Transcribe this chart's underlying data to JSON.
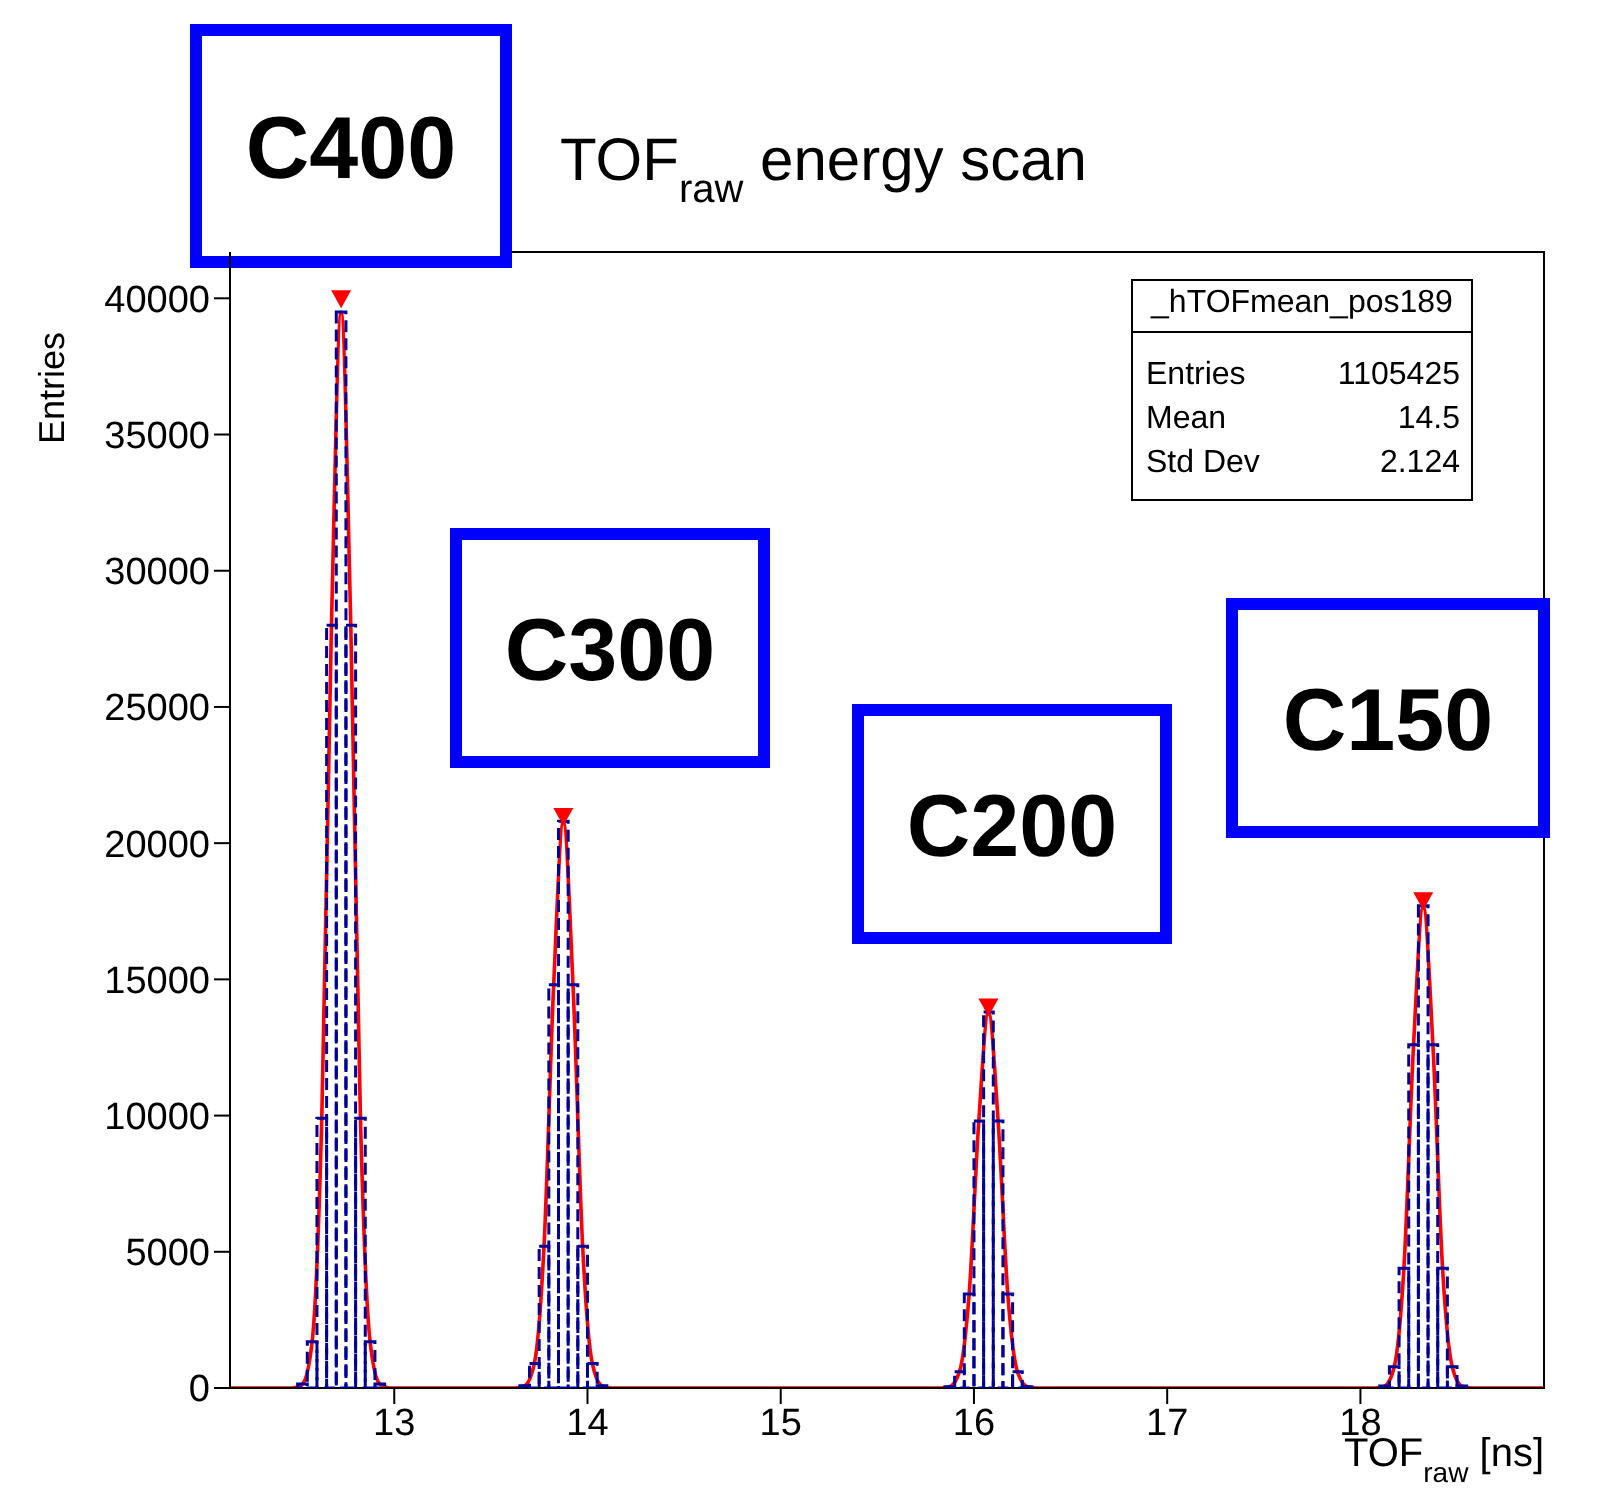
{
  "chart_data": {
    "type": "histogram",
    "title": "TOF$_{raw}$ energy scan",
    "xlabel": "TOF$_{raw}$ [ns]",
    "ylabel": "Entries",
    "xlim": [
      12.15,
      18.95
    ],
    "xticks": [
      13,
      14,
      15,
      16,
      17,
      18
    ],
    "ylim": [
      0,
      41700
    ],
    "yticks": [
      0,
      5000,
      10000,
      15000,
      20000,
      25000,
      30000,
      35000,
      40000
    ],
    "grid": false,
    "annotations": [
      "C400",
      "C300",
      "C200",
      "C150",
      "_hTOFmean_pos189",
      "Entries 1105425",
      "Mean 14.5",
      "Std Dev 2.124"
    ],
    "series": [
      {
        "color": "#000099",
        "bins": [
          12.15,
          12.2,
          12.25,
          12.3,
          12.35,
          12.4,
          12.45,
          12.5,
          12.55,
          12.6,
          12.65,
          12.7,
          12.75,
          12.8,
          12.85,
          12.9,
          12.95,
          13,
          13.05,
          13.1,
          13.15,
          13.2,
          13.25,
          13.3,
          13.35,
          13.4,
          13.45,
          13.5,
          13.55,
          13.6,
          13.65,
          13.7,
          13.75,
          13.8,
          13.85,
          13.9,
          13.95,
          14,
          14.05,
          14.1,
          14.15,
          14.2,
          14.25,
          14.3,
          14.35,
          14.4,
          14.45,
          14.5,
          14.55,
          14.6,
          14.65,
          14.7,
          14.75,
          14.8,
          14.85,
          14.9,
          14.95,
          15,
          15.05,
          15.1,
          15.15,
          15.2,
          15.25,
          15.3,
          15.35,
          15.4,
          15.45,
          15.5,
          15.55,
          15.6,
          15.65,
          15.7,
          15.75,
          15.8,
          15.85,
          15.9,
          15.95,
          16,
          16.05,
          16.1,
          16.15,
          16.2,
          16.25,
          16.3,
          16.35,
          16.4,
          16.45,
          16.5,
          16.55,
          16.6,
          16.65,
          16.7,
          16.75,
          16.8,
          16.85,
          16.9,
          16.95,
          17,
          17.05,
          17.1,
          17.15,
          17.2,
          17.25,
          17.3,
          17.35,
          17.4,
          17.45,
          17.5,
          17.55,
          17.6,
          17.65,
          17.7,
          17.75,
          17.8,
          17.85,
          17.9,
          17.95,
          18,
          18.05,
          18.1,
          18.15,
          18.2,
          18.25,
          18.3,
          18.35,
          18.4,
          18.45,
          18.5,
          18.55,
          18.6,
          18.65,
          18.7,
          18.75,
          18.8,
          18.85,
          18.9,
          18.95
        ],
        "values": [
          0,
          0,
          0,
          0,
          0,
          0,
          0,
          150,
          1700,
          9900,
          28000,
          39500,
          28000,
          9900,
          1700,
          150,
          0,
          0,
          0,
          0,
          0,
          0,
          0,
          0,
          0,
          0,
          0,
          0,
          0,
          0,
          80,
          900,
          5200,
          14800,
          20800,
          14800,
          5200,
          900,
          80,
          0,
          0,
          0,
          0,
          0,
          0,
          0,
          0,
          0,
          0,
          0,
          0,
          0,
          0,
          0,
          0,
          0,
          0,
          0,
          0,
          0,
          0,
          0,
          0,
          0,
          0,
          0,
          0,
          0,
          0,
          0,
          0,
          0,
          0,
          0,
          50,
          600,
          3450,
          9800,
          13800,
          9800,
          3450,
          600,
          50,
          0,
          0,
          0,
          0,
          0,
          0,
          0,
          0,
          0,
          0,
          0,
          0,
          0,
          0,
          0,
          0,
          0,
          0,
          0,
          0,
          0,
          0,
          0,
          0,
          0,
          0,
          0,
          0,
          0,
          0,
          0,
          0,
          0,
          0,
          0,
          0,
          70,
          780,
          4400,
          12600,
          17700,
          12600,
          4400,
          780,
          70,
          0,
          0,
          0,
          0,
          0,
          0,
          0,
          0
        ]
      },
      {
        "type": "line",
        "color": "#ff0000",
        "x": [
          12.15,
          12.475,
          12.525,
          12.575,
          12.625,
          12.675,
          12.725,
          12.775,
          12.825,
          12.875,
          12.925,
          12.975,
          13.625,
          13.675,
          13.725,
          13.775,
          13.825,
          13.875,
          13.925,
          13.975,
          14.025,
          14.075,
          14.125,
          15.825,
          15.875,
          15.925,
          15.975,
          16.025,
          16.075,
          16.125,
          16.175,
          16.225,
          16.275,
          16.325,
          18.075,
          18.125,
          18.175,
          18.225,
          18.275,
          18.325,
          18.375,
          18.425,
          18.475,
          18.525,
          18.575,
          18.95
        ],
        "values": [
          0,
          0,
          150,
          1700,
          9900,
          28000,
          39500,
          28000,
          9900,
          1700,
          150,
          0,
          0,
          80,
          900,
          5200,
          14800,
          20800,
          14800,
          5200,
          900,
          80,
          0,
          0,
          50,
          600,
          3450,
          9800,
          13800,
          9800,
          3450,
          600,
          50,
          0,
          0,
          70,
          780,
          4400,
          12600,
          17700,
          12600,
          4400,
          780,
          70,
          0,
          0
        ]
      },
      {
        "type": "scatter",
        "color": "#ff0000",
        "marker": "triangle",
        "x": [
          12.725,
          13.875,
          16.075,
          18.325
        ],
        "values": [
          40000,
          21000,
          14000,
          17900
        ]
      }
    ]
  }
}
